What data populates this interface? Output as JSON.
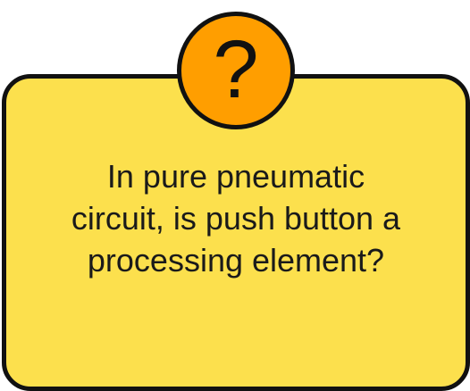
{
  "card": {
    "question": "In pure pneumatic\ncircuit, is push button a\nprocessing element?",
    "fill_color": "#fce04d",
    "border_color": "#111111"
  },
  "badge": {
    "icon": "question-mark-icon",
    "glyph": "?",
    "fill_color": "#ff9e00"
  }
}
